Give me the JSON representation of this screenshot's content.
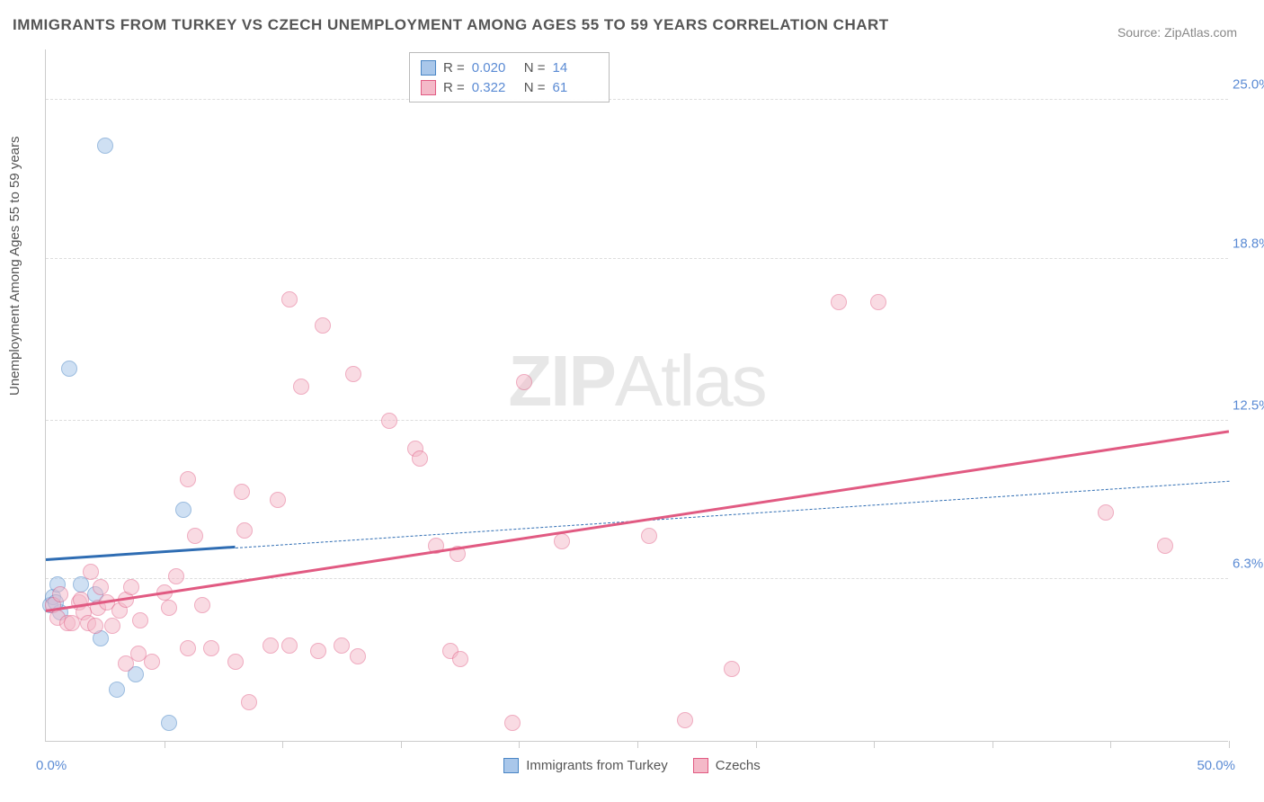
{
  "title": "IMMIGRANTS FROM TURKEY VS CZECH UNEMPLOYMENT AMONG AGES 55 TO 59 YEARS CORRELATION CHART",
  "source": "Source: ZipAtlas.com",
  "ylabel": "Unemployment Among Ages 55 to 59 years",
  "watermark_bold": "ZIP",
  "watermark_light": "Atlas",
  "chart": {
    "type": "scatter",
    "xlim": [
      0,
      50
    ],
    "ylim": [
      0,
      27
    ],
    "xtick_positions": [
      0,
      5,
      10,
      15,
      20,
      25,
      30,
      35,
      40,
      45,
      50
    ],
    "xmin_label": "0.0%",
    "xmax_label": "50.0%",
    "ygrid": [
      {
        "value": 6.3,
        "label": "6.3%"
      },
      {
        "value": 12.5,
        "label": "12.5%"
      },
      {
        "value": 18.8,
        "label": "18.8%"
      },
      {
        "value": 25.0,
        "label": "25.0%"
      }
    ],
    "background_color": "#ffffff",
    "grid_color": "#dddddd",
    "axis_color": "#cccccc",
    "tick_label_color": "#5b8bd4",
    "marker_radius": 9,
    "marker_stroke_width": 1.5,
    "series": [
      {
        "id": "turkey",
        "label": "Immigrants from Turkey",
        "fill": "#a9c7ea",
        "stroke": "#4a86c5",
        "fill_opacity": 0.55,
        "R": "0.020",
        "N": "14",
        "trend": {
          "x1": 0,
          "y1": 7.0,
          "x2": 50,
          "y2": 10.1,
          "solid_until_x": 8,
          "color": "#2f6db3",
          "width_solid": 3,
          "width_dash": 1.5,
          "dash": "6,5"
        },
        "points": [
          {
            "x": 0.2,
            "y": 5.3
          },
          {
            "x": 0.3,
            "y": 5.6
          },
          {
            "x": 0.6,
            "y": 5.0
          },
          {
            "x": 0.5,
            "y": 6.1
          },
          {
            "x": 1.5,
            "y": 6.1
          },
          {
            "x": 2.1,
            "y": 5.7
          },
          {
            "x": 2.3,
            "y": 4.0
          },
          {
            "x": 2.5,
            "y": 23.2
          },
          {
            "x": 3.0,
            "y": 2.0
          },
          {
            "x": 3.8,
            "y": 2.6
          },
          {
            "x": 5.2,
            "y": 0.7
          },
          {
            "x": 5.8,
            "y": 9.0
          },
          {
            "x": 1.0,
            "y": 14.5
          },
          {
            "x": 0.4,
            "y": 5.4
          }
        ]
      },
      {
        "id": "czechs",
        "label": "Czechs",
        "fill": "#f4b9c8",
        "stroke": "#e15a82",
        "fill_opacity": 0.5,
        "R": "0.322",
        "N": "61",
        "trend": {
          "x1": 0,
          "y1": 5.0,
          "x2": 50,
          "y2": 12.0,
          "solid_until_x": 50,
          "color": "#e15a82",
          "width_solid": 3,
          "width_dash": 0,
          "dash": ""
        },
        "points": [
          {
            "x": 0.3,
            "y": 5.3
          },
          {
            "x": 0.5,
            "y": 4.8
          },
          {
            "x": 0.6,
            "y": 5.7
          },
          {
            "x": 0.9,
            "y": 4.6
          },
          {
            "x": 1.1,
            "y": 4.6
          },
          {
            "x": 1.4,
            "y": 5.4
          },
          {
            "x": 1.5,
            "y": 5.5
          },
          {
            "x": 1.6,
            "y": 5.0
          },
          {
            "x": 1.8,
            "y": 4.6
          },
          {
            "x": 1.9,
            "y": 6.6
          },
          {
            "x": 2.1,
            "y": 4.5
          },
          {
            "x": 2.2,
            "y": 5.2
          },
          {
            "x": 2.3,
            "y": 6.0
          },
          {
            "x": 2.6,
            "y": 5.4
          },
          {
            "x": 2.8,
            "y": 4.5
          },
          {
            "x": 3.1,
            "y": 5.1
          },
          {
            "x": 3.4,
            "y": 5.5
          },
          {
            "x": 3.4,
            "y": 3.0
          },
          {
            "x": 3.6,
            "y": 6.0
          },
          {
            "x": 3.9,
            "y": 3.4
          },
          {
            "x": 4.5,
            "y": 3.1
          },
          {
            "x": 4.0,
            "y": 4.7
          },
          {
            "x": 5.0,
            "y": 5.8
          },
          {
            "x": 5.2,
            "y": 5.2
          },
          {
            "x": 5.5,
            "y": 6.4
          },
          {
            "x": 6.0,
            "y": 3.6
          },
          {
            "x": 6.0,
            "y": 10.2
          },
          {
            "x": 6.3,
            "y": 8.0
          },
          {
            "x": 6.6,
            "y": 5.3
          },
          {
            "x": 7.0,
            "y": 3.6
          },
          {
            "x": 8.0,
            "y": 3.1
          },
          {
            "x": 8.3,
            "y": 9.7
          },
          {
            "x": 8.4,
            "y": 8.2
          },
          {
            "x": 8.6,
            "y": 1.5
          },
          {
            "x": 9.5,
            "y": 3.7
          },
          {
            "x": 9.8,
            "y": 9.4
          },
          {
            "x": 10.3,
            "y": 3.7
          },
          {
            "x": 10.3,
            "y": 17.2
          },
          {
            "x": 10.8,
            "y": 13.8
          },
          {
            "x": 11.5,
            "y": 3.5
          },
          {
            "x": 11.7,
            "y": 16.2
          },
          {
            "x": 12.5,
            "y": 3.7
          },
          {
            "x": 13.2,
            "y": 3.3
          },
          {
            "x": 13.0,
            "y": 14.3
          },
          {
            "x": 14.5,
            "y": 12.5
          },
          {
            "x": 15.6,
            "y": 11.4
          },
          {
            "x": 15.8,
            "y": 11.0
          },
          {
            "x": 16.5,
            "y": 7.6
          },
          {
            "x": 17.1,
            "y": 3.5
          },
          {
            "x": 17.4,
            "y": 7.3
          },
          {
            "x": 17.5,
            "y": 3.2
          },
          {
            "x": 19.7,
            "y": 0.7
          },
          {
            "x": 20.2,
            "y": 14.0
          },
          {
            "x": 21.8,
            "y": 7.8
          },
          {
            "x": 25.5,
            "y": 8.0
          },
          {
            "x": 27.0,
            "y": 0.8
          },
          {
            "x": 29.0,
            "y": 2.8
          },
          {
            "x": 33.5,
            "y": 17.1
          },
          {
            "x": 35.2,
            "y": 17.1
          },
          {
            "x": 44.8,
            "y": 8.9
          },
          {
            "x": 47.3,
            "y": 7.6
          }
        ]
      }
    ]
  },
  "legend_top": {
    "r_label": "R =",
    "n_label": "N ="
  },
  "legend_bottom_order": [
    "turkey",
    "czechs"
  ]
}
